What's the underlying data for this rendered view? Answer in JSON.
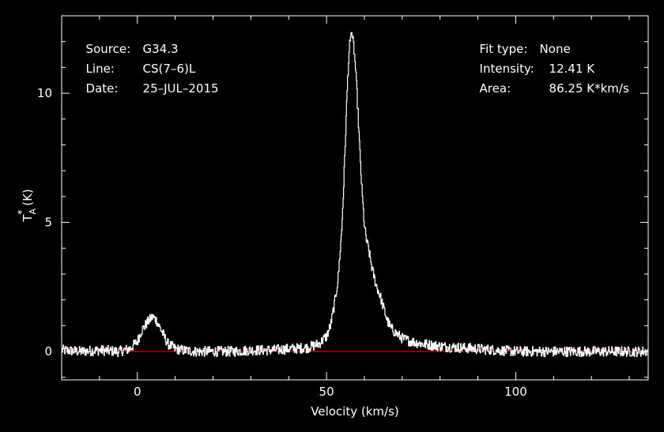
{
  "header": {
    "source_label": "Source:",
    "source_value": "G34.3",
    "line_label": "Line:",
    "line_value": "CS(7–6)L",
    "date_label": "Date:",
    "date_value": "25–JUL–2015",
    "fit_label": "Fit type:",
    "fit_value": "None",
    "intensity_label": "Intensity:",
    "intensity_value": "12.41 K",
    "area_label": "Area:",
    "area_value": "86.25 K*km/s"
  },
  "colors": {
    "background": "#000000",
    "axes": "#ffffff",
    "spectrum": "#ffffff",
    "baseline": "#ff0000"
  },
  "chart_data": {
    "type": "line",
    "xlabel": "Velocity (km/s)",
    "ylabel_main": "T",
    "ylabel_sup": "*",
    "ylabel_sub": "A",
    "ylabel_unit": " (K)",
    "xlim": [
      -20,
      135
    ],
    "ylim": [
      -1.1,
      13.0
    ],
    "x_ticks": [
      0,
      50,
      100
    ],
    "y_ticks": [
      0,
      5,
      10
    ],
    "grid": false,
    "baseline_y": 0,
    "series": [
      {
        "x": [
          -20,
          -15,
          -10,
          -5,
          -2,
          0,
          1,
          2,
          3,
          4,
          5,
          6,
          7,
          8,
          10,
          12,
          15,
          20,
          25,
          30,
          35,
          40,
          45,
          48,
          50,
          51,
          52,
          53,
          54,
          54.5,
          55,
          55.5,
          56,
          56.5,
          57,
          57.5,
          58,
          58.5,
          59,
          59.5,
          60,
          60.5,
          61,
          62,
          63,
          64,
          65,
          66,
          67,
          68,
          70,
          72,
          75,
          80,
          85,
          90,
          95,
          100,
          110,
          120,
          135
        ],
        "y": [
          0.05,
          0.0,
          0.05,
          0.0,
          0.1,
          0.4,
          0.8,
          1.0,
          1.2,
          1.35,
          1.2,
          0.9,
          0.6,
          0.3,
          0.1,
          0.05,
          0.0,
          0.0,
          0.0,
          0.05,
          0.05,
          0.1,
          0.15,
          0.3,
          0.6,
          1.0,
          1.8,
          2.8,
          4.8,
          6.5,
          8.5,
          10.5,
          11.8,
          12.41,
          12.0,
          11.2,
          10.0,
          8.5,
          7.0,
          5.8,
          4.8,
          4.3,
          4.0,
          3.2,
          2.6,
          2.2,
          1.7,
          1.2,
          0.9,
          0.75,
          0.5,
          0.4,
          0.3,
          0.2,
          0.15,
          0.1,
          0.05,
          0.0,
          0.0,
          0.0,
          0.0
        ]
      }
    ]
  }
}
